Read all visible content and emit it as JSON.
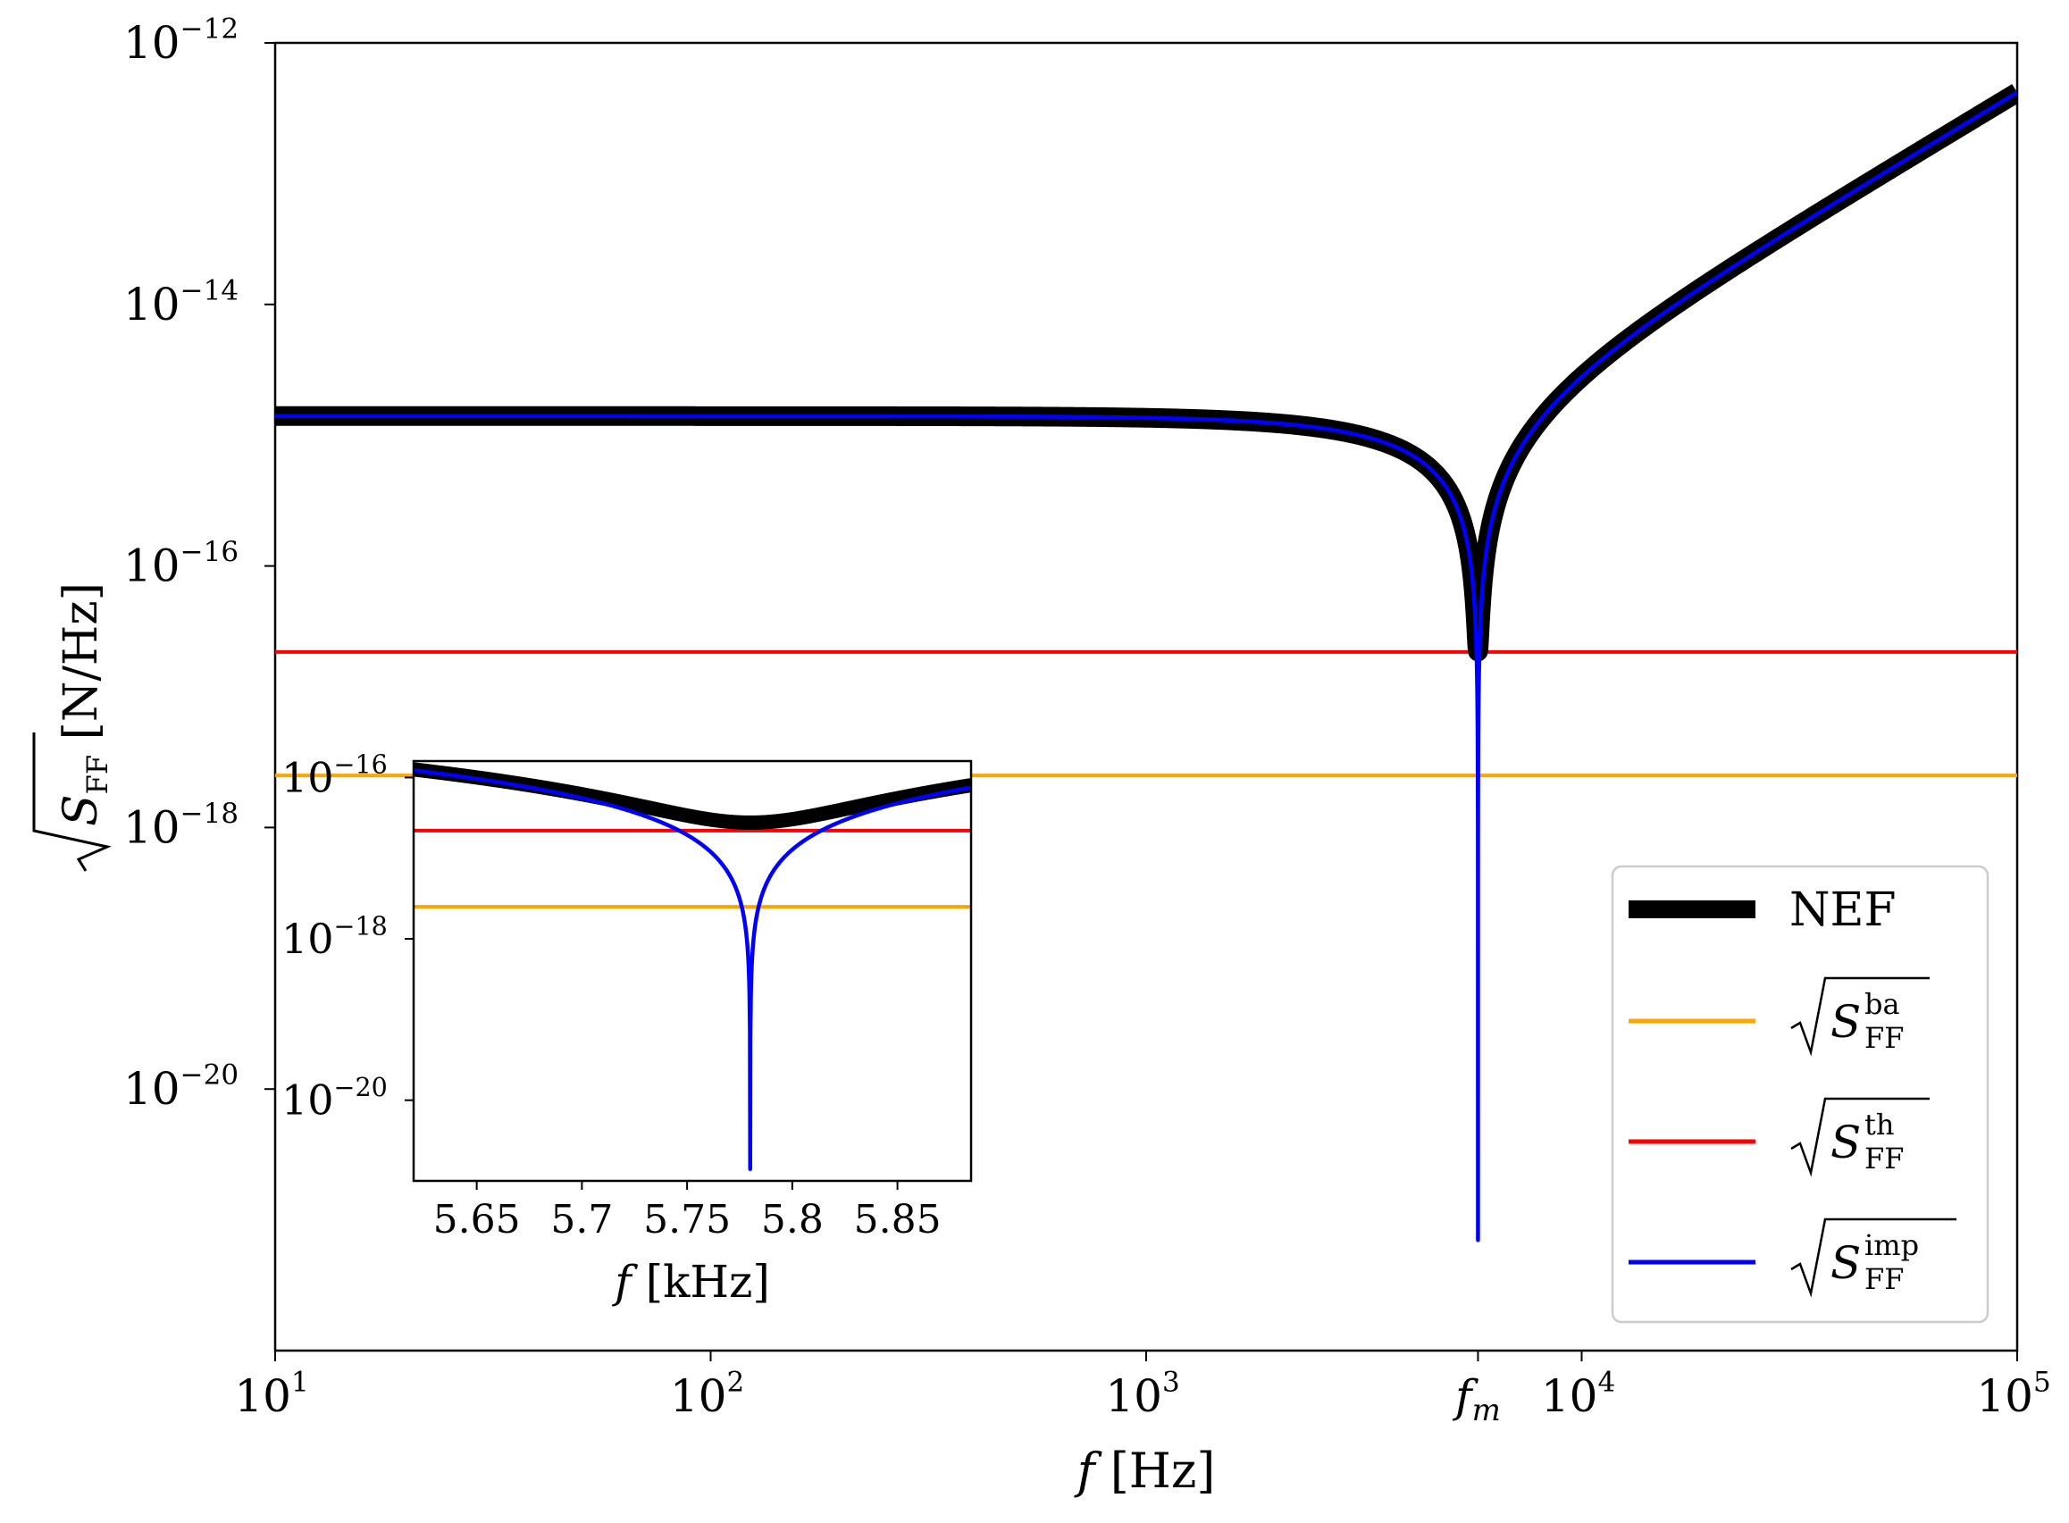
{
  "chart_data": [
    {
      "type": "line",
      "title": "",
      "xlabel": {
        "var": "f",
        "unit": "[Hz]"
      },
      "ylabel": {
        "radical": "S",
        "sub": "FF",
        "unit": "[N/Hz]"
      },
      "xscale": "log",
      "yscale": "log",
      "xlim": [
        10,
        100000
      ],
      "ylim": [
        1e-22,
        1e-12
      ],
      "xticks": [
        {
          "value": 10,
          "base": "10",
          "exp": "1"
        },
        {
          "value": 100,
          "base": "10",
          "exp": "2"
        },
        {
          "value": 1000,
          "base": "10",
          "exp": "3"
        },
        {
          "value": 10000,
          "base": "10",
          "exp": "4"
        },
        {
          "value": 100000,
          "base": "10",
          "exp": "5"
        }
      ],
      "extra_xtick": {
        "value": 5780,
        "label": "f",
        "sub": "m"
      },
      "yticks": [
        {
          "value": 1e-12,
          "base": "10",
          "exp": "−12"
        },
        {
          "value": 1e-14,
          "base": "10",
          "exp": "−14"
        },
        {
          "value": 1e-16,
          "base": "10",
          "exp": "−16"
        },
        {
          "value": 1e-18,
          "base": "10",
          "exp": "−18"
        },
        {
          "value": 1e-20,
          "base": "10",
          "exp": "−20"
        }
      ],
      "resonance_hz": 5780,
      "series": [
        {
          "name": "NEF",
          "color": "#000000",
          "style": "thick",
          "model": "nef",
          "low_freq_level": 1.4e-15,
          "floor": 2.2e-17
        },
        {
          "name": "S_FF^ba",
          "color": "#FFA500",
          "model": "constant",
          "value": 2.5e-18
        },
        {
          "name": "S_FF^th",
          "color": "#FF0000",
          "model": "constant",
          "value": 2.2e-17
        },
        {
          "name": "S_FF^imp",
          "color": "#0000FF",
          "model": "imp",
          "low_freq_level": 1.4e-15,
          "min_value": 7e-22
        }
      ],
      "legend": {
        "placement": "lower-right",
        "entries": [
          {
            "label": "NEF",
            "color": "#000000",
            "kind": "text"
          },
          {
            "label": "S",
            "sup": "ba",
            "sub": "FF",
            "color": "#FFA500",
            "kind": "radical"
          },
          {
            "label": "S",
            "sup": "th",
            "sub": "FF",
            "color": "#FF0000",
            "kind": "radical"
          },
          {
            "label": "S",
            "sup": "imp",
            "sub": "FF",
            "color": "#0000FF",
            "kind": "radical"
          }
        ]
      }
    },
    {
      "type": "line",
      "title": "",
      "xlabel": {
        "var": "f",
        "unit": "[kHz]"
      },
      "xscale": "linear",
      "yscale": "log",
      "xlim": [
        5.62,
        5.885
      ],
      "ylim": [
        1e-21,
        1.6e-16
      ],
      "xticks": [
        {
          "value": 5.65,
          "label": "5.65"
        },
        {
          "value": 5.7,
          "label": "5.7"
        },
        {
          "value": 5.75,
          "label": "5.75"
        },
        {
          "value": 5.8,
          "label": "5.8"
        },
        {
          "value": 5.85,
          "label": "5.85"
        }
      ],
      "yticks": [
        {
          "value": 1e-16,
          "base": "10",
          "exp": "−16"
        },
        {
          "value": 1e-18,
          "base": "10",
          "exp": "−18"
        },
        {
          "value": 1e-20,
          "base": "10",
          "exp": "−20"
        }
      ],
      "resonance_khz": 5.78,
      "series": [
        {
          "name": "NEF",
          "color": "#000000",
          "style": "thick",
          "model": "nef_zoom",
          "floor": 2.2e-17
        },
        {
          "name": "S_FF^ba",
          "color": "#FFA500",
          "model": "constant",
          "value": 2.5e-18
        },
        {
          "name": "S_FF^th",
          "color": "#FF0000",
          "model": "constant",
          "value": 2.2e-17
        },
        {
          "name": "S_FF^imp",
          "color": "#0000FF",
          "model": "imp_zoom",
          "min_value": 1.4e-21
        }
      ]
    }
  ]
}
